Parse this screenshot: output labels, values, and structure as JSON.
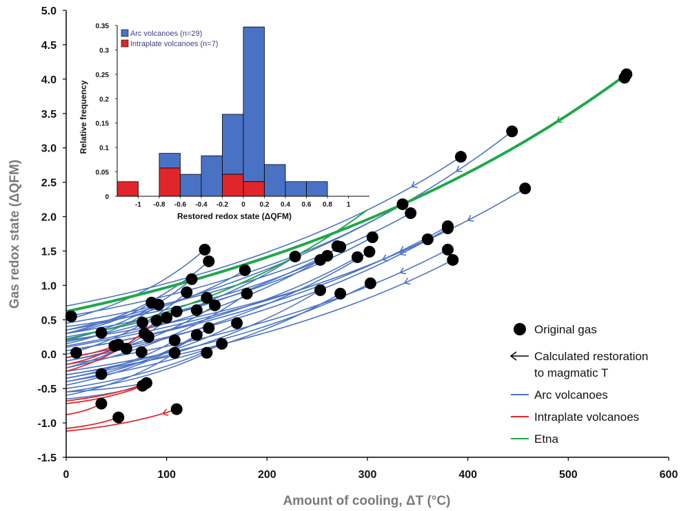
{
  "chart_data": [
    {
      "type": "scatter",
      "title": "",
      "xlabel": "Amount of cooling, ΔT (°C)",
      "ylabel": "Gas redox state (ΔQFM)",
      "xlim": [
        0,
        600
      ],
      "ylim": [
        -1.5,
        5.0
      ],
      "x_ticks": [
        "0",
        "100",
        "200",
        "300",
        "400",
        "500",
        "600"
      ],
      "y_ticks": [
        "-1.5",
        "-1.0",
        "-0.5",
        "0.0",
        "0.5",
        "1.0",
        "1.5",
        "2.0",
        "2.5",
        "3.0",
        "3.5",
        "4.0",
        "4.5",
        "5.0"
      ],
      "grid": false,
      "legend_position": "bottom-right",
      "legend": {
        "original": "Original gas",
        "restoration_line1": "Calculated restoration",
        "restoration_line2": "to magmatic T",
        "arc": "Arc volcanoes",
        "intraplate": "Intraplate volcanoes",
        "etna": "Etna"
      },
      "colors": {
        "arc": "#4a72c4",
        "intraplate": "#e0262a",
        "etna": "#1fa84a",
        "points": "#000000"
      },
      "points": [
        [
          5,
          0.55
        ],
        [
          10,
          0.02
        ],
        [
          35,
          0.31
        ],
        [
          35,
          -0.29
        ],
        [
          35,
          -0.72
        ],
        [
          48,
          0.12
        ],
        [
          52,
          0.14
        ],
        [
          52,
          -0.92
        ],
        [
          60,
          0.08
        ],
        [
          75,
          0.03
        ],
        [
          76,
          0.46
        ],
        [
          78,
          0.3
        ],
        [
          82,
          0.25
        ],
        [
          76,
          -0.46
        ],
        [
          80,
          -0.42
        ],
        [
          85,
          0.75
        ],
        [
          90,
          0.49
        ],
        [
          92,
          0.72
        ],
        [
          100,
          0.53
        ],
        [
          108,
          0.02
        ],
        [
          108,
          0.2
        ],
        [
          110,
          0.62
        ],
        [
          110,
          -0.8
        ],
        [
          120,
          0.9
        ],
        [
          125,
          1.09
        ],
        [
          130,
          0.28
        ],
        [
          130,
          0.64
        ],
        [
          138,
          1.52
        ],
        [
          140,
          0.82
        ],
        [
          140,
          0.02
        ],
        [
          142,
          1.35
        ],
        [
          142,
          0.38
        ],
        [
          148,
          0.71
        ],
        [
          155,
          0.15
        ],
        [
          170,
          0.45
        ],
        [
          178,
          1.22
        ],
        [
          180,
          0.88
        ],
        [
          228,
          1.42
        ],
        [
          253,
          1.37
        ],
        [
          253,
          0.93
        ],
        [
          260,
          1.43
        ],
        [
          270,
          1.57
        ],
        [
          273,
          1.56
        ],
        [
          273,
          0.88
        ],
        [
          290,
          1.41
        ],
        [
          302,
          1.49
        ],
        [
          303,
          1.03
        ],
        [
          305,
          1.7
        ],
        [
          335,
          2.18
        ],
        [
          343,
          2.05
        ],
        [
          360,
          1.67
        ],
        [
          380,
          1.86
        ],
        [
          380,
          1.83
        ],
        [
          380,
          1.52
        ],
        [
          385,
          1.37
        ],
        [
          393,
          2.87
        ],
        [
          444,
          3.24
        ],
        [
          457,
          2.41
        ],
        [
          556,
          4.02
        ],
        [
          558,
          4.07
        ]
      ],
      "arc_curves": [
        [
          [
            0,
            0.7
          ],
          [
            393,
            2.87
          ]
        ],
        [
          [
            0,
            0.35
          ],
          [
            444,
            3.24
          ]
        ],
        [
          [
            0,
            0.1
          ],
          [
            457,
            2.41
          ]
        ],
        [
          [
            0,
            0.55
          ],
          [
            335,
            2.18
          ]
        ],
        [
          [
            0,
            0.45
          ],
          [
            343,
            2.05
          ]
        ],
        [
          [
            0,
            0.3
          ],
          [
            305,
            1.7
          ]
        ],
        [
          [
            0,
            0.4
          ],
          [
            253,
            1.37
          ]
        ],
        [
          [
            0,
            0.25
          ],
          [
            273,
            1.56
          ]
        ],
        [
          [
            0,
            0.2
          ],
          [
            360,
            1.67
          ]
        ],
        [
          [
            0,
            0.05
          ],
          [
            380,
            1.86
          ]
        ],
        [
          [
            0,
            -0.05
          ],
          [
            380,
            1.83
          ]
        ],
        [
          [
            0,
            -0.15
          ],
          [
            380,
            1.52
          ]
        ],
        [
          [
            0,
            -0.3
          ],
          [
            385,
            1.37
          ]
        ],
        [
          [
            0,
            -0.1
          ],
          [
            302,
            1.49
          ]
        ],
        [
          [
            0,
            0.05
          ],
          [
            290,
            1.41
          ]
        ],
        [
          [
            0,
            0.12
          ],
          [
            260,
            1.43
          ]
        ],
        [
          [
            0,
            0.18
          ],
          [
            228,
            1.42
          ]
        ],
        [
          [
            0,
            0.5
          ],
          [
            138,
            1.52
          ]
        ],
        [
          [
            0,
            0.3
          ],
          [
            142,
            1.35
          ]
        ],
        [
          [
            0,
            0.2
          ],
          [
            125,
            1.09
          ]
        ],
        [
          [
            0,
            0.35
          ],
          [
            178,
            1.22
          ]
        ],
        [
          [
            0,
            -0.25
          ],
          [
            303,
            1.03
          ]
        ],
        [
          [
            0,
            -0.35
          ],
          [
            253,
            0.93
          ]
        ],
        [
          [
            0,
            -0.4
          ],
          [
            273,
            0.88
          ]
        ],
        [
          [
            0,
            -0.2
          ],
          [
            180,
            0.88
          ]
        ],
        [
          [
            0,
            -0.3
          ],
          [
            170,
            0.45
          ]
        ],
        [
          [
            0,
            -0.45
          ],
          [
            142,
            0.38
          ]
        ],
        [
          [
            0,
            -0.5
          ],
          [
            155,
            0.15
          ]
        ],
        [
          [
            0,
            -0.55
          ],
          [
            140,
            0.02
          ]
        ],
        [
          [
            0,
            -0.1
          ],
          [
            148,
            0.71
          ]
        ],
        [
          [
            0,
            -0.2
          ],
          [
            110,
            0.62
          ]
        ],
        [
          [
            0,
            -0.35
          ],
          [
            108,
            0.2
          ]
        ],
        [
          [
            0,
            -0.6
          ],
          [
            108,
            0.02
          ]
        ],
        [
          [
            0,
            -0.4
          ],
          [
            130,
            0.28
          ]
        ],
        [
          [
            0,
            0.0
          ],
          [
            120,
            0.9
          ]
        ],
        [
          [
            0,
            -0.65
          ],
          [
            76,
            -0.46
          ]
        ],
        [
          [
            0,
            -0.55
          ],
          [
            80,
            -0.42
          ]
        ],
        [
          [
            0,
            0.3
          ],
          [
            85,
            0.75
          ]
        ],
        [
          [
            0,
            0.15
          ],
          [
            92,
            0.72
          ]
        ]
      ],
      "intraplate_curves": [
        [
          [
            0,
            -1.12
          ],
          [
            110,
            -0.8
          ]
        ],
        [
          [
            0,
            -1.08
          ],
          [
            52,
            -0.92
          ]
        ],
        [
          [
            0,
            -0.88
          ],
          [
            35,
            -0.72
          ]
        ],
        [
          [
            0,
            -0.72
          ],
          [
            76,
            -0.46
          ]
        ],
        [
          [
            0,
            -0.68
          ],
          [
            80,
            -0.42
          ]
        ],
        [
          [
            0,
            -0.15
          ],
          [
            52,
            0.14
          ]
        ],
        [
          [
            0,
            -0.05
          ],
          [
            48,
            0.12
          ]
        ],
        [
          [
            0,
            -0.25
          ],
          [
            90,
            0.49
          ]
        ]
      ],
      "etna_curves": [
        [
          [
            0,
            0.62
          ],
          [
            558,
            4.07
          ]
        ],
        [
          [
            0,
            0.22
          ],
          [
            300,
            2.1
          ]
        ]
      ]
    },
    {
      "type": "bar",
      "title": "",
      "xlabel": "Restored redox state (ΔQFM)",
      "ylabel": "Relative frequency",
      "xlim": [
        -1.2,
        1.2
      ],
      "ylim": [
        0,
        0.35
      ],
      "x_ticks": [
        "-1",
        "-0.8",
        "-0.6",
        "-0.4",
        "-0.2",
        "0",
        "0.2",
        "0.4",
        "0.6",
        "0.8",
        "1"
      ],
      "y_ticks": [
        "0",
        "0.05",
        "0.1",
        "0.15",
        "0.2",
        "0.25",
        "0.3",
        "0.35"
      ],
      "legend_position": "top-left",
      "legend": {
        "arc": "Arc volcanoes (n=29)",
        "intraplate": "Intraplate volcanoes (n=7)"
      },
      "colors": {
        "arc": "#4a72c4",
        "intraplate": "#e0262a"
      },
      "bin_width": 0.2,
      "bins": [
        {
          "start": -1.2,
          "arc": 0.0,
          "intraplate": 0.03
        },
        {
          "start": -0.8,
          "arc": 0.03,
          "intraplate": 0.058
        },
        {
          "start": -0.6,
          "arc": 0.045,
          "intraplate": 0.0
        },
        {
          "start": -0.4,
          "arc": 0.083,
          "intraplate": 0.0
        },
        {
          "start": -0.2,
          "arc": 0.123,
          "intraplate": 0.045
        },
        {
          "start": 0.0,
          "arc": 0.317,
          "intraplate": 0.03
        },
        {
          "start": 0.2,
          "arc": 0.065,
          "intraplate": 0.0
        },
        {
          "start": 0.4,
          "arc": 0.03,
          "intraplate": 0.0
        },
        {
          "start": 0.6,
          "arc": 0.03,
          "intraplate": 0.0
        }
      ]
    }
  ]
}
